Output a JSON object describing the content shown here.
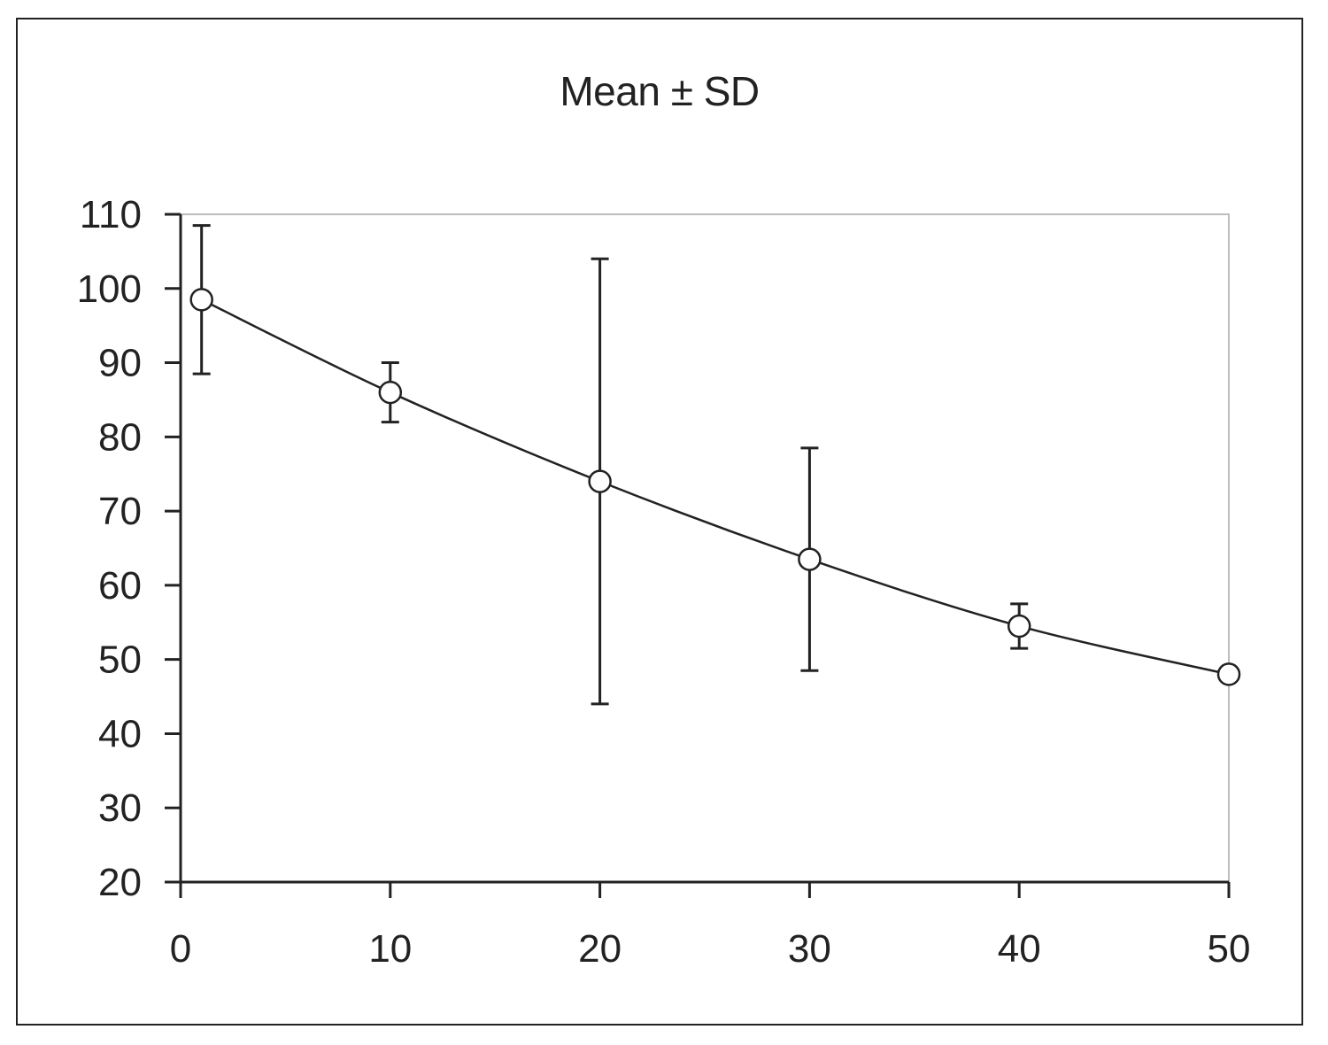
{
  "chart_data": {
    "type": "line",
    "title": "Mean ± SD",
    "xlabel": "",
    "ylabel": "",
    "xlim": [
      0,
      50
    ],
    "ylim": [
      20,
      110
    ],
    "xticks": [
      0,
      10,
      20,
      30,
      40,
      50
    ],
    "yticks": [
      20,
      30,
      40,
      50,
      60,
      70,
      80,
      90,
      100,
      110
    ],
    "grid": false,
    "legend": "none",
    "series": [
      {
        "marker": "open-circle",
        "color": "#222222",
        "points": [
          {
            "x": 1,
            "y": 98.5,
            "sd": 10
          },
          {
            "x": 10,
            "y": 86,
            "sd": 4
          },
          {
            "x": 20,
            "y": 74,
            "sd": 30
          },
          {
            "x": 30,
            "y": 63.5,
            "sd": 15
          },
          {
            "x": 40,
            "y": 54.5,
            "sd": 3
          },
          {
            "x": 50,
            "y": 48,
            "sd": 0
          }
        ]
      }
    ]
  }
}
